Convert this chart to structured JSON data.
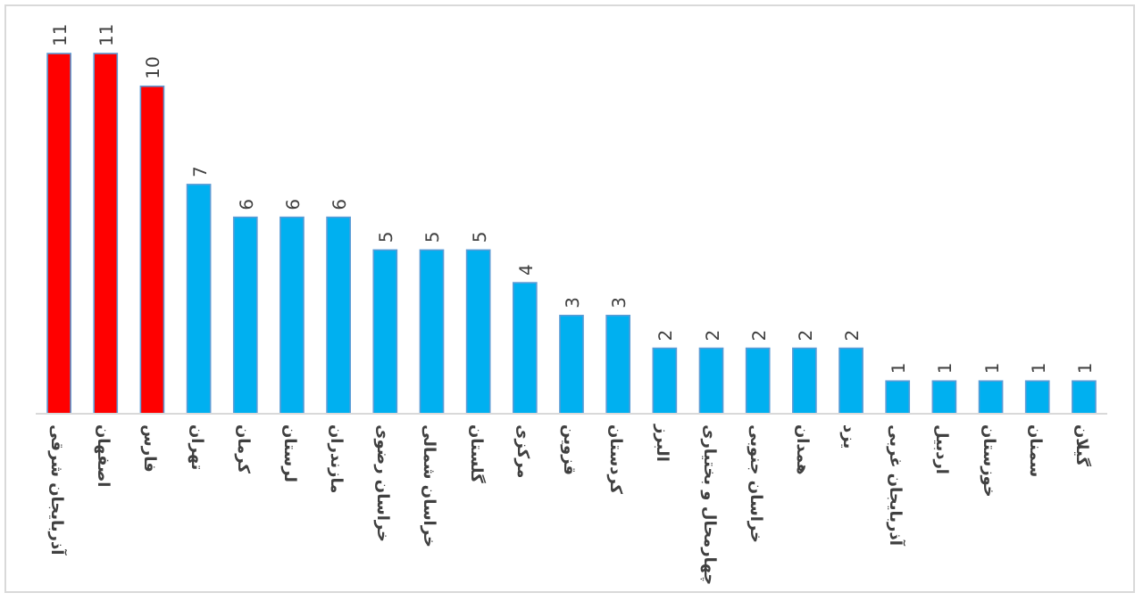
{
  "chart_data": {
    "type": "bar",
    "categories": [
      "آذربایجان شرقی",
      "اصفهان",
      "فارس",
      "تهران",
      "کرمان",
      "لرستان",
      "مازندران",
      "خراسان رضوی",
      "خراسان شمالی",
      "گلستان",
      "مرکزی",
      "قزوین",
      "کردستان",
      "البرز",
      "چهارمحال و بختیاری",
      "خراسان جنوبی",
      "همدان",
      "یزد",
      "آذربایجان غربی",
      "اردبیل",
      "خوزستان",
      "سمنان",
      "گیلان"
    ],
    "values": [
      11,
      11,
      10,
      7,
      6,
      6,
      6,
      5,
      5,
      5,
      4,
      3,
      3,
      2,
      2,
      2,
      2,
      2,
      1,
      1,
      1,
      1,
      1
    ],
    "colors": [
      "#ff0000",
      "#ff0000",
      "#ff0000",
      "#00b0f0",
      "#00b0f0",
      "#00b0f0",
      "#00b0f0",
      "#00b0f0",
      "#00b0f0",
      "#00b0f0",
      "#00b0f0",
      "#00b0f0",
      "#00b0f0",
      "#00b0f0",
      "#00b0f0",
      "#00b0f0",
      "#00b0f0",
      "#00b0f0",
      "#00b0f0",
      "#00b0f0",
      "#00b0f0",
      "#00b0f0",
      "#00b0f0"
    ],
    "data_labels": true
  }
}
